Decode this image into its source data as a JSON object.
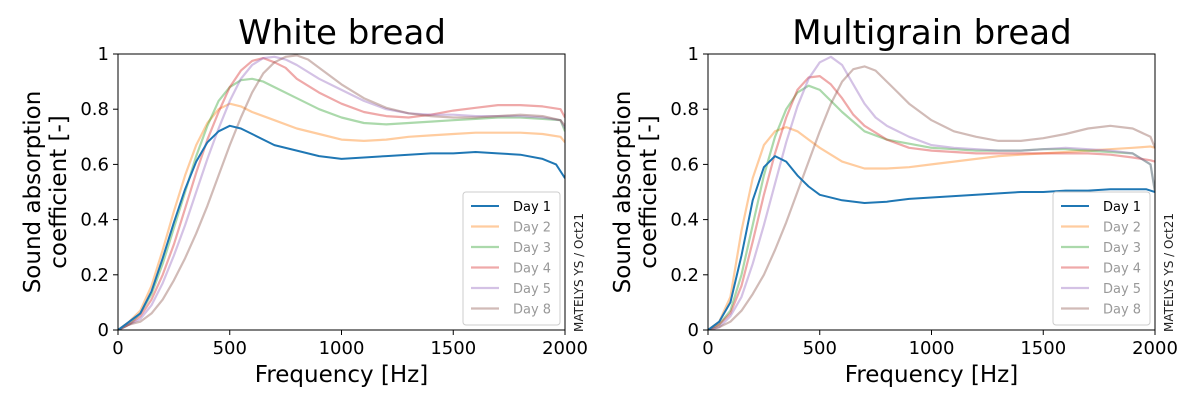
{
  "watermark": "MATELYS YS / Oct21",
  "colors": {
    "Day 1": "#1f77b4",
    "Day 2": "#ff7f0e",
    "Day 3": "#2ca02c",
    "Day 4": "#d62728",
    "Day 5": "#9467bd",
    "Day 8": "#8c564b"
  },
  "chart_data": [
    {
      "type": "line",
      "title": "White bread",
      "xlabel": "Frequency [Hz]",
      "ylabel_line1": "Sound absorption",
      "ylabel_line2": "coefficient [-]",
      "xlim": [
        0,
        2000
      ],
      "ylim": [
        0,
        1
      ],
      "xticks": [
        0,
        500,
        1000,
        1500,
        2000
      ],
      "yticks": [
        0,
        0.2,
        0.4,
        0.6,
        0.8,
        1
      ],
      "ytick_labels": [
        "0",
        "0.2",
        "0.4",
        "0.6",
        "0.8",
        "1"
      ],
      "legend": [
        "Day 1",
        "Day 2",
        "Day 3",
        "Day 4",
        "Day 5",
        "Day 8"
      ],
      "legend_position": "lower-right",
      "series": [
        {
          "name": "Day 1",
          "x": [
            0,
            50,
            100,
            150,
            200,
            250,
            300,
            350,
            400,
            450,
            500,
            550,
            600,
            700,
            800,
            900,
            1000,
            1100,
            1200,
            1300,
            1400,
            1500,
            1600,
            1700,
            1800,
            1900,
            1960,
            2000
          ],
          "y": [
            0.0,
            0.03,
            0.06,
            0.14,
            0.26,
            0.39,
            0.51,
            0.61,
            0.68,
            0.72,
            0.74,
            0.73,
            0.71,
            0.67,
            0.65,
            0.63,
            0.62,
            0.625,
            0.63,
            0.635,
            0.64,
            0.64,
            0.645,
            0.64,
            0.635,
            0.62,
            0.6,
            0.55
          ]
        },
        {
          "name": "Day 2",
          "x": [
            0,
            50,
            100,
            150,
            200,
            250,
            300,
            350,
            400,
            450,
            500,
            550,
            600,
            700,
            800,
            900,
            1000,
            1100,
            1200,
            1300,
            1400,
            1500,
            1600,
            1700,
            1800,
            1900,
            1980,
            2000
          ],
          "y": [
            0.0,
            0.03,
            0.07,
            0.16,
            0.29,
            0.43,
            0.56,
            0.67,
            0.75,
            0.8,
            0.82,
            0.81,
            0.79,
            0.76,
            0.73,
            0.71,
            0.69,
            0.685,
            0.69,
            0.7,
            0.705,
            0.71,
            0.715,
            0.715,
            0.715,
            0.71,
            0.7,
            0.68
          ]
        },
        {
          "name": "Day 3",
          "x": [
            0,
            50,
            100,
            150,
            200,
            250,
            300,
            350,
            400,
            450,
            500,
            550,
            600,
            650,
            700,
            800,
            900,
            1000,
            1100,
            1200,
            1300,
            1400,
            1500,
            1600,
            1700,
            1800,
            1900,
            1980,
            2000
          ],
          "y": [
            0.0,
            0.02,
            0.06,
            0.13,
            0.24,
            0.37,
            0.5,
            0.63,
            0.74,
            0.83,
            0.88,
            0.905,
            0.91,
            0.9,
            0.88,
            0.84,
            0.8,
            0.77,
            0.75,
            0.745,
            0.75,
            0.755,
            0.76,
            0.765,
            0.77,
            0.77,
            0.765,
            0.76,
            0.72
          ]
        },
        {
          "name": "Day 4",
          "x": [
            0,
            50,
            100,
            150,
            200,
            250,
            300,
            350,
            400,
            450,
            500,
            550,
            600,
            650,
            700,
            750,
            800,
            900,
            1000,
            1100,
            1200,
            1300,
            1400,
            1500,
            1600,
            1700,
            1800,
            1900,
            1980,
            2000
          ],
          "y": [
            0.0,
            0.02,
            0.05,
            0.11,
            0.2,
            0.31,
            0.44,
            0.57,
            0.69,
            0.79,
            0.88,
            0.94,
            0.975,
            0.985,
            0.97,
            0.95,
            0.91,
            0.86,
            0.82,
            0.79,
            0.775,
            0.77,
            0.78,
            0.795,
            0.805,
            0.815,
            0.815,
            0.81,
            0.8,
            0.77
          ]
        },
        {
          "name": "Day 5",
          "x": [
            0,
            50,
            100,
            150,
            200,
            250,
            300,
            350,
            400,
            450,
            500,
            550,
            600,
            650,
            700,
            750,
            800,
            900,
            1000,
            1100,
            1200,
            1300,
            1400,
            1500,
            1600,
            1700,
            1800,
            1900,
            1980,
            2000
          ],
          "y": [
            0.0,
            0.02,
            0.04,
            0.09,
            0.17,
            0.27,
            0.38,
            0.5,
            0.62,
            0.73,
            0.83,
            0.91,
            0.96,
            0.985,
            0.99,
            0.98,
            0.96,
            0.91,
            0.87,
            0.83,
            0.8,
            0.785,
            0.78,
            0.78,
            0.775,
            0.775,
            0.775,
            0.77,
            0.76,
            0.73
          ]
        },
        {
          "name": "Day 8",
          "x": [
            0,
            50,
            100,
            150,
            200,
            250,
            300,
            350,
            400,
            450,
            500,
            550,
            600,
            650,
            700,
            750,
            800,
            850,
            900,
            1000,
            1100,
            1200,
            1300,
            1400,
            1500,
            1600,
            1700,
            1800,
            1900,
            1980,
            2000
          ],
          "y": [
            0.0,
            0.02,
            0.03,
            0.06,
            0.11,
            0.18,
            0.26,
            0.35,
            0.45,
            0.56,
            0.67,
            0.77,
            0.86,
            0.93,
            0.97,
            0.99,
            0.995,
            0.98,
            0.95,
            0.89,
            0.84,
            0.805,
            0.785,
            0.775,
            0.77,
            0.77,
            0.775,
            0.78,
            0.775,
            0.76,
            0.74
          ]
        }
      ]
    },
    {
      "type": "line",
      "title": "Multigrain bread",
      "xlabel": "Frequency [Hz]",
      "ylabel_line1": "Sound absorption",
      "ylabel_line2": "coefficient [-]",
      "xlim": [
        0,
        2000
      ],
      "ylim": [
        0,
        1
      ],
      "xticks": [
        0,
        500,
        1000,
        1500,
        2000
      ],
      "yticks": [
        0,
        0.2,
        0.4,
        0.6,
        0.8,
        1
      ],
      "ytick_labels": [
        "0",
        "0.2",
        "0.4",
        "0.6",
        "0.8",
        "1"
      ],
      "legend": [
        "Day 1",
        "Day 2",
        "Day 3",
        "Day 4",
        "Day 5",
        "Day 8"
      ],
      "legend_position": "lower-right",
      "series": [
        {
          "name": "Day 1",
          "x": [
            0,
            50,
            100,
            150,
            200,
            250,
            300,
            350,
            400,
            450,
            500,
            600,
            700,
            800,
            900,
            1000,
            1100,
            1200,
            1300,
            1400,
            1500,
            1600,
            1700,
            1800,
            1900,
            1960,
            2000
          ],
          "y": [
            0.0,
            0.03,
            0.1,
            0.27,
            0.47,
            0.59,
            0.63,
            0.61,
            0.56,
            0.52,
            0.49,
            0.47,
            0.46,
            0.465,
            0.475,
            0.48,
            0.485,
            0.49,
            0.495,
            0.5,
            0.5,
            0.505,
            0.505,
            0.51,
            0.51,
            0.51,
            0.5
          ]
        },
        {
          "name": "Day 2",
          "x": [
            0,
            50,
            100,
            150,
            200,
            250,
            300,
            350,
            400,
            450,
            500,
            600,
            700,
            800,
            900,
            1000,
            1100,
            1200,
            1300,
            1400,
            1500,
            1600,
            1700,
            1800,
            1900,
            1980,
            2000
          ],
          "y": [
            0.0,
            0.03,
            0.12,
            0.36,
            0.55,
            0.67,
            0.72,
            0.735,
            0.72,
            0.69,
            0.66,
            0.61,
            0.585,
            0.585,
            0.59,
            0.6,
            0.61,
            0.62,
            0.63,
            0.635,
            0.64,
            0.645,
            0.65,
            0.655,
            0.66,
            0.665,
            0.66
          ]
        },
        {
          "name": "Day 3",
          "x": [
            0,
            50,
            100,
            150,
            200,
            250,
            300,
            350,
            400,
            450,
            500,
            550,
            600,
            700,
            800,
            900,
            1000,
            1100,
            1200,
            1300,
            1400,
            1500,
            1600,
            1700,
            1800,
            1900,
            1980,
            2000
          ],
          "y": [
            0.0,
            0.02,
            0.07,
            0.2,
            0.38,
            0.56,
            0.7,
            0.8,
            0.86,
            0.885,
            0.87,
            0.83,
            0.79,
            0.72,
            0.69,
            0.675,
            0.66,
            0.655,
            0.65,
            0.65,
            0.65,
            0.655,
            0.655,
            0.65,
            0.645,
            0.64,
            0.6,
            0.5
          ]
        },
        {
          "name": "Day 4",
          "x": [
            0,
            50,
            100,
            150,
            200,
            250,
            300,
            350,
            400,
            450,
            500,
            550,
            600,
            650,
            700,
            800,
            900,
            1000,
            1100,
            1200,
            1300,
            1400,
            1500,
            1600,
            1700,
            1800,
            1900,
            1980,
            2000
          ],
          "y": [
            0.0,
            0.02,
            0.06,
            0.16,
            0.32,
            0.49,
            0.64,
            0.77,
            0.87,
            0.915,
            0.92,
            0.89,
            0.84,
            0.78,
            0.74,
            0.69,
            0.66,
            0.65,
            0.645,
            0.64,
            0.64,
            0.64,
            0.64,
            0.64,
            0.64,
            0.635,
            0.625,
            0.615,
            0.61
          ]
        },
        {
          "name": "Day 5",
          "x": [
            0,
            50,
            100,
            150,
            200,
            250,
            300,
            350,
            400,
            450,
            500,
            550,
            600,
            650,
            700,
            750,
            800,
            900,
            1000,
            1100,
            1200,
            1300,
            1400,
            1500,
            1600,
            1700,
            1800,
            1900,
            1980,
            2000
          ],
          "y": [
            0.0,
            0.01,
            0.05,
            0.12,
            0.24,
            0.38,
            0.53,
            0.68,
            0.81,
            0.91,
            0.97,
            0.99,
            0.96,
            0.89,
            0.82,
            0.77,
            0.74,
            0.7,
            0.67,
            0.66,
            0.655,
            0.65,
            0.65,
            0.655,
            0.66,
            0.655,
            0.65,
            0.64,
            0.6,
            0.5
          ]
        },
        {
          "name": "Day 8",
          "x": [
            0,
            50,
            100,
            150,
            200,
            250,
            300,
            350,
            400,
            450,
            500,
            550,
            600,
            650,
            700,
            750,
            800,
            850,
            900,
            1000,
            1100,
            1200,
            1300,
            1400,
            1500,
            1600,
            1700,
            1800,
            1900,
            1980,
            2000
          ],
          "y": [
            0.0,
            0.01,
            0.03,
            0.07,
            0.13,
            0.2,
            0.29,
            0.39,
            0.5,
            0.61,
            0.72,
            0.82,
            0.9,
            0.945,
            0.955,
            0.94,
            0.9,
            0.86,
            0.82,
            0.76,
            0.72,
            0.7,
            0.685,
            0.685,
            0.695,
            0.71,
            0.73,
            0.74,
            0.73,
            0.7,
            0.66
          ]
        }
      ]
    }
  ]
}
